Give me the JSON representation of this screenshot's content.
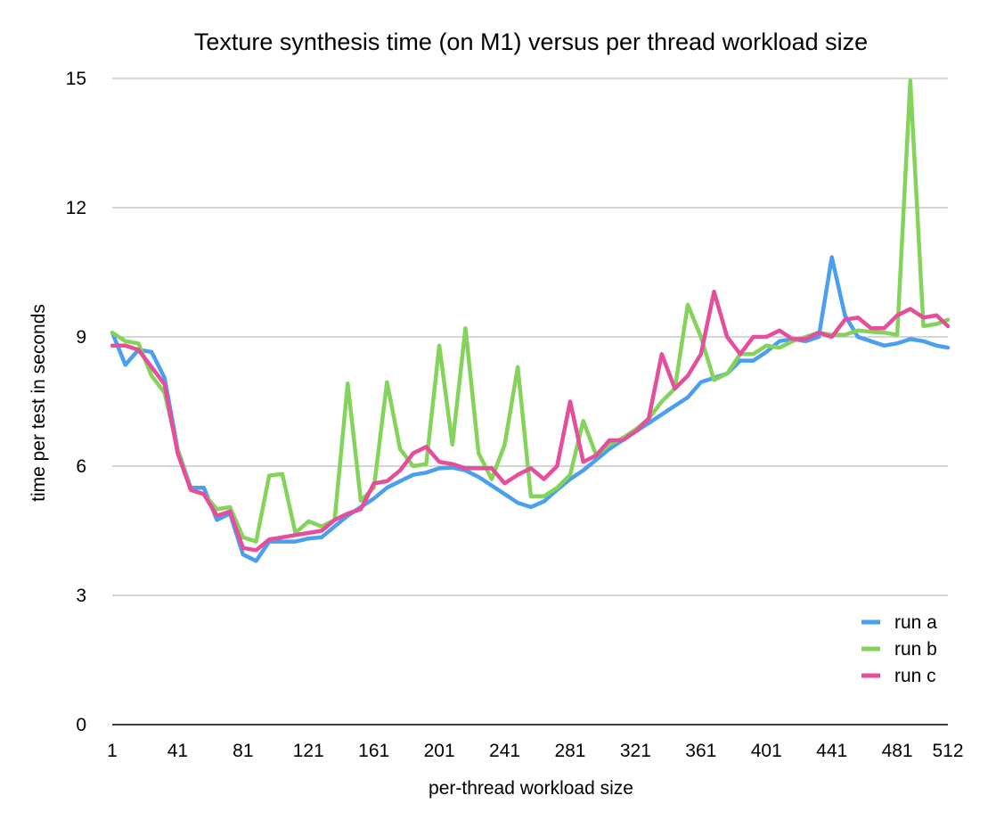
{
  "chart_data": {
    "type": "line",
    "title": "Texture synthesis time (on M1) versus per thread workload size",
    "xlabel": "per-thread workload size",
    "ylabel": "time per test in seconds",
    "x": [
      1,
      9,
      17,
      25,
      33,
      41,
      49,
      57,
      65,
      73,
      81,
      89,
      97,
      105,
      113,
      121,
      129,
      137,
      145,
      153,
      161,
      169,
      177,
      185,
      193,
      201,
      209,
      217,
      225,
      233,
      241,
      249,
      257,
      265,
      273,
      281,
      289,
      297,
      305,
      313,
      321,
      329,
      337,
      345,
      353,
      361,
      369,
      377,
      385,
      393,
      401,
      409,
      417,
      425,
      433,
      441,
      449,
      457,
      465,
      473,
      481,
      489,
      497,
      505,
      512
    ],
    "x_ticks": [
      "1",
      "41",
      "81",
      "121",
      "161",
      "201",
      "241",
      "281",
      "321",
      "361",
      "401",
      "441",
      "481",
      "512"
    ],
    "y_ticks": [
      "0",
      "3",
      "6",
      "9",
      "12",
      "15"
    ],
    "ylim": [
      0,
      15
    ],
    "grid": true,
    "legend_position": "bottom-right",
    "series": [
      {
        "name": "run a",
        "color": "#4a9ff0",
        "values": [
          9.1,
          8.35,
          8.7,
          8.65,
          8.05,
          6.4,
          5.5,
          5.5,
          4.75,
          4.9,
          3.95,
          3.8,
          4.25,
          4.25,
          4.25,
          4.32,
          4.35,
          4.6,
          4.85,
          5.05,
          5.25,
          5.5,
          5.65,
          5.8,
          5.85,
          5.95,
          5.97,
          5.9,
          5.75,
          5.55,
          5.35,
          5.15,
          5.05,
          5.18,
          5.45,
          5.7,
          5.9,
          6.15,
          6.4,
          6.6,
          6.8,
          7.0,
          7.2,
          7.4,
          7.6,
          7.95,
          8.05,
          8.15,
          8.45,
          8.45,
          8.65,
          8.9,
          8.95,
          8.9,
          9.0,
          10.85,
          9.5,
          9.0,
          8.9,
          8.8,
          8.85,
          8.95,
          8.9,
          8.8,
          8.75
        ]
      },
      {
        "name": "run b",
        "color": "#84d35a",
        "values": [
          9.1,
          8.9,
          8.85,
          8.1,
          7.7,
          6.4,
          5.45,
          5.35,
          5.0,
          5.05,
          4.35,
          4.25,
          5.78,
          5.82,
          4.45,
          4.72,
          4.6,
          4.75,
          7.92,
          5.2,
          5.5,
          7.95,
          6.4,
          6.0,
          6.05,
          8.8,
          6.5,
          9.2,
          6.3,
          5.7,
          6.5,
          8.3,
          5.3,
          5.3,
          5.5,
          5.8,
          7.05,
          6.25,
          6.5,
          6.65,
          6.85,
          7.1,
          7.5,
          7.8,
          9.75,
          9.0,
          8.0,
          8.15,
          8.6,
          8.6,
          8.8,
          8.75,
          8.9,
          9.0,
          9.1,
          9.05,
          9.05,
          9.15,
          9.12,
          9.1,
          9.05,
          14.95,
          9.25,
          9.3,
          9.4
        ]
      },
      {
        "name": "run c",
        "color": "#e64d9a",
        "values": [
          8.8,
          8.8,
          8.7,
          8.3,
          7.9,
          6.3,
          5.45,
          5.35,
          4.85,
          4.95,
          4.1,
          4.05,
          4.3,
          4.35,
          4.4,
          4.45,
          4.5,
          4.75,
          4.9,
          5.0,
          5.6,
          5.65,
          5.9,
          6.3,
          6.45,
          6.1,
          6.05,
          5.95,
          5.95,
          5.95,
          5.6,
          5.8,
          5.95,
          5.7,
          6.0,
          7.5,
          6.1,
          6.25,
          6.6,
          6.6,
          6.8,
          7.1,
          8.6,
          7.8,
          8.1,
          8.6,
          10.05,
          9.0,
          8.6,
          9.0,
          9.0,
          9.15,
          8.95,
          8.95,
          9.1,
          9.0,
          9.4,
          9.45,
          9.2,
          9.2,
          9.5,
          9.65,
          9.45,
          9.5,
          9.25
        ]
      }
    ]
  }
}
